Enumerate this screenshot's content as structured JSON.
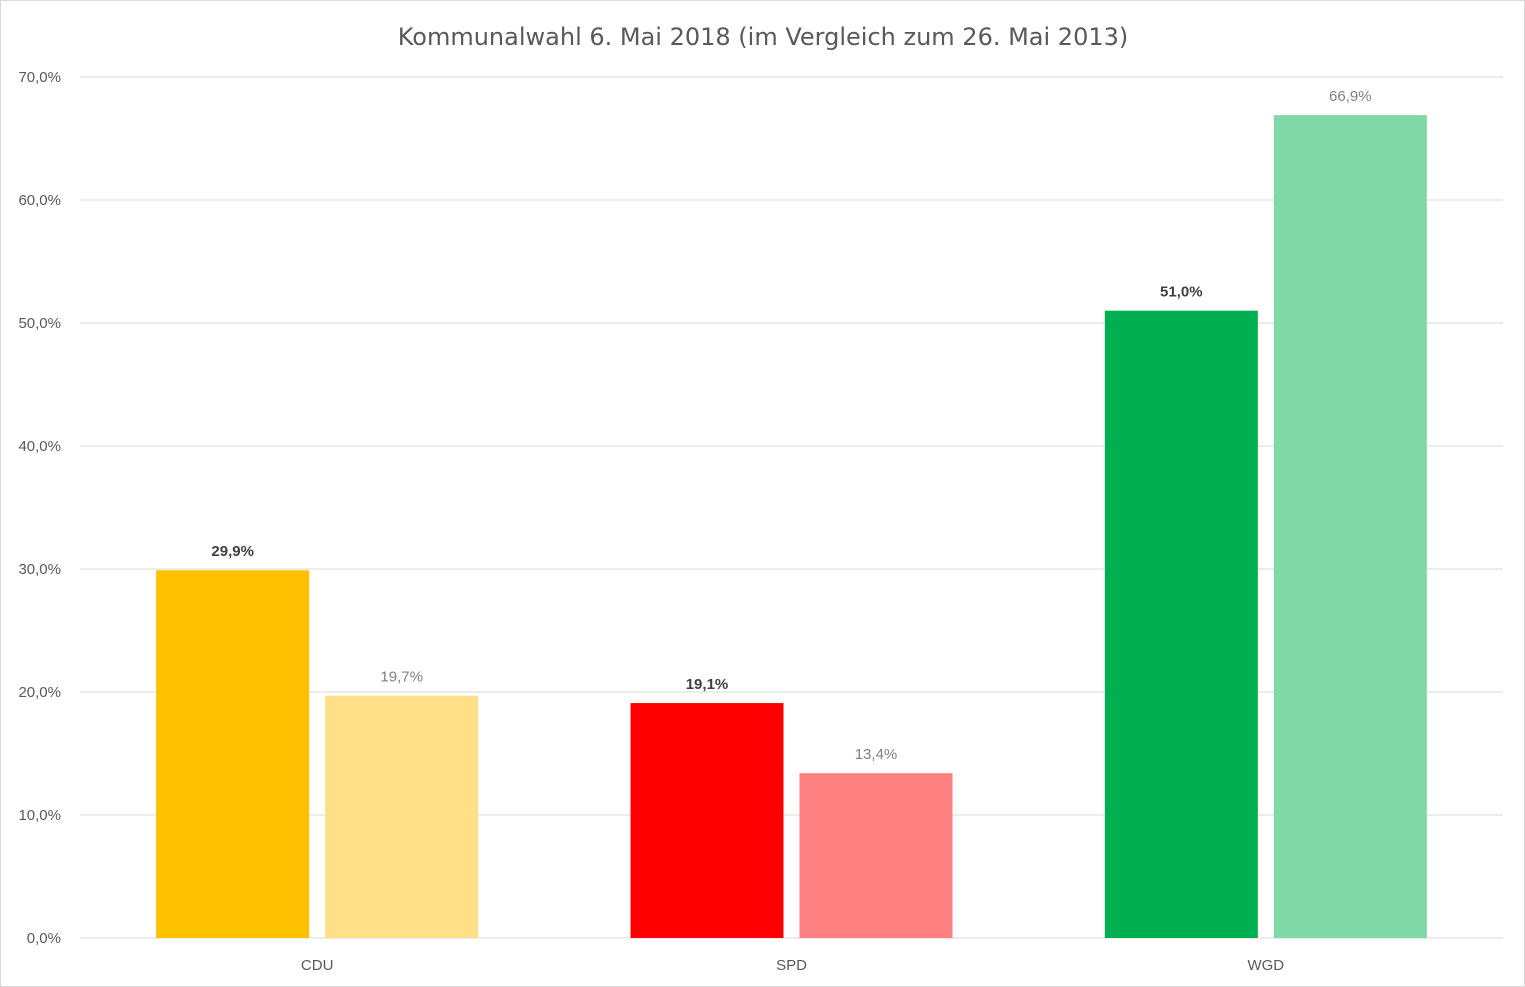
{
  "chart_data": {
    "type": "bar",
    "title": "Kommunalwahl 6. Mai 2018 (im Vergleich zum 26. Mai 2013)",
    "xlabel": "",
    "ylabel": "",
    "categories": [
      "CDU",
      "SPD",
      "WGD"
    ],
    "ylim": [
      0,
      70
    ],
    "yticks": [
      0,
      10,
      20,
      30,
      40,
      50,
      60,
      70
    ],
    "ytick_labels": [
      "0,0%",
      "10,0%",
      "20,0%",
      "30,0%",
      "40,0%",
      "50,0%",
      "60,0%",
      "70,0%"
    ],
    "grid": true,
    "legend": "none",
    "series": [
      {
        "values": [
          29.9,
          19.1,
          51.0
        ],
        "labels": [
          "29,9%",
          "19,1%",
          "51,0%"
        ],
        "colors": [
          "#FFC000",
          "#FF0000",
          "#00B050"
        ]
      },
      {
        "values": [
          19.7,
          13.4,
          66.9
        ],
        "labels": [
          "19,7%",
          "13,4%",
          "66,9%"
        ],
        "colors": [
          "#FFDF88",
          "#FF8080",
          "#80D8A7"
        ]
      }
    ]
  }
}
